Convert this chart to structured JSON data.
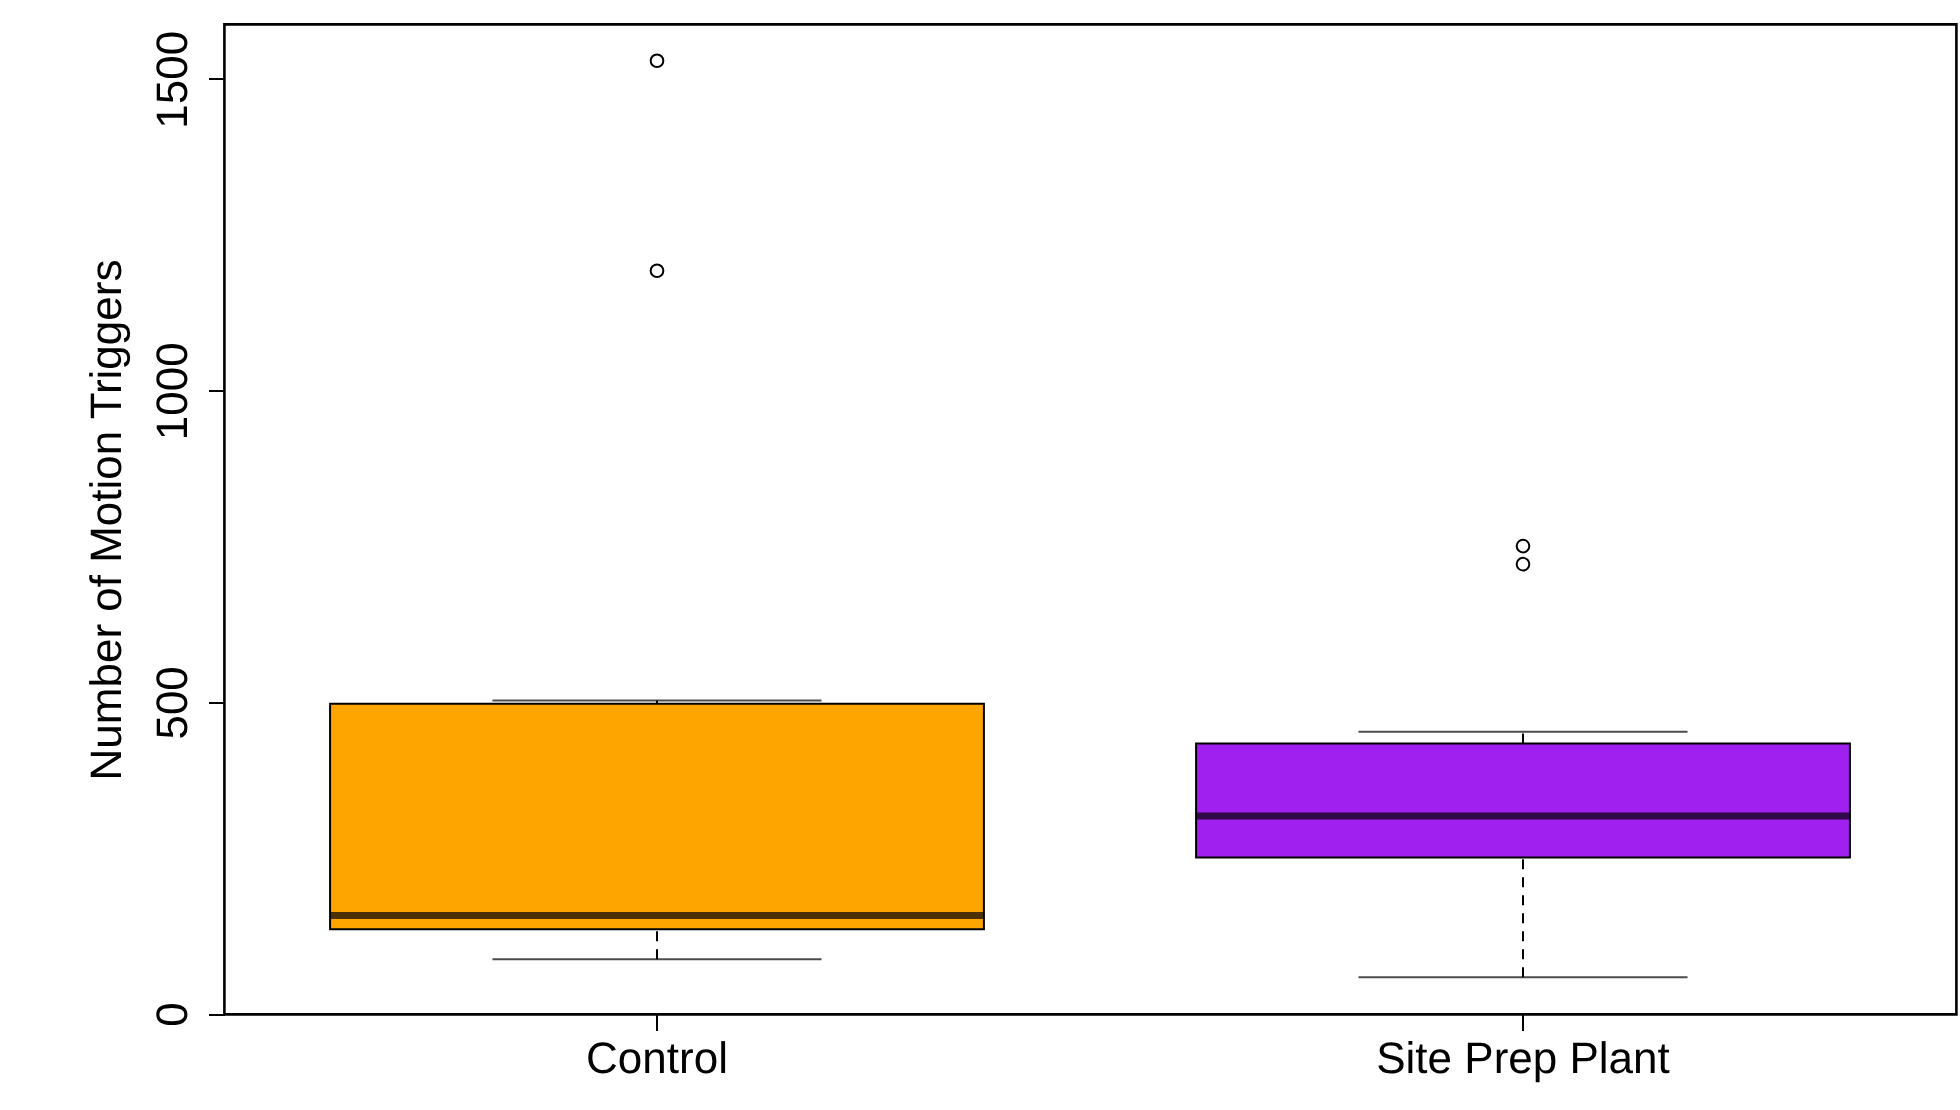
{
  "chart_data": {
    "type": "box",
    "ylabel": "Number of Motion Triggers",
    "categories": [
      "Control",
      "Site Prep Plant"
    ],
    "colors": [
      "#ffa500",
      "#a020f0"
    ],
    "boxes": [
      {
        "low": 87,
        "q1": 135,
        "median": 157,
        "q3": 497,
        "high": 502,
        "outliers": [
          1192,
          1529
        ]
      },
      {
        "low": 58,
        "q1": 250,
        "median": 317,
        "q3": 433,
        "high": 452,
        "outliers": [
          721,
          750
        ]
      }
    ],
    "ylim": [
      -1,
      1588
    ],
    "yticks": [
      0,
      500,
      1000,
      1500
    ],
    "grid": false
  }
}
